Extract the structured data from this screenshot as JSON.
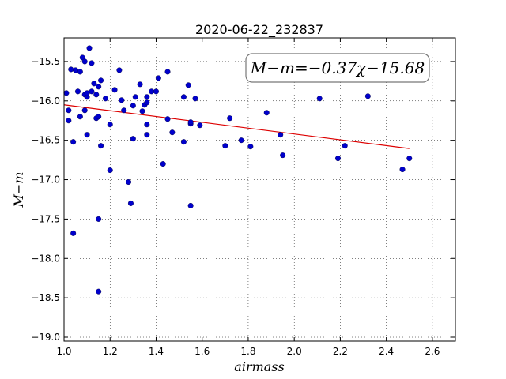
{
  "chart_data": {
    "type": "scatter",
    "title": "2020-06-22_232837",
    "xlabel": "airmass",
    "ylabel": "M−m",
    "xlim": [
      1.0,
      2.7
    ],
    "ylim": [
      -19.05,
      -15.2
    ],
    "grid": true,
    "x_ticks": [
      1.0,
      1.2,
      1.4,
      1.6,
      1.8,
      2.0,
      2.2,
      2.4,
      2.6
    ],
    "x_tick_labels": [
      "1.0",
      "1.2",
      "1.4",
      "1.6",
      "1.8",
      "2.0",
      "2.2",
      "2.4",
      "2.6"
    ],
    "y_ticks": [
      -15.5,
      -16.0,
      -16.5,
      -17.0,
      -17.5,
      -18.0,
      -18.5,
      -19.0
    ],
    "y_tick_labels": [
      "−15.5",
      "−16.0",
      "−16.5",
      "−17.0",
      "−17.5",
      "−18.0",
      "−18.5",
      "−19.0"
    ],
    "annotation": "M−m=−0.37χ−15.68",
    "marker_color": "#0000cc",
    "fit_color": "#dd0000",
    "fit_line": {
      "slope": -0.37,
      "intercept": -15.68,
      "x_range": [
        1.0,
        2.5
      ]
    },
    "points": [
      [
        1.01,
        -15.9
      ],
      [
        1.02,
        -16.12
      ],
      [
        1.02,
        -16.25
      ],
      [
        1.03,
        -15.6
      ],
      [
        1.04,
        -16.52
      ],
      [
        1.04,
        -17.68
      ],
      [
        1.05,
        -15.61
      ],
      [
        1.06,
        -15.88
      ],
      [
        1.07,
        -16.2
      ],
      [
        1.07,
        -15.63
      ],
      [
        1.08,
        -15.45
      ],
      [
        1.09,
        -15.5
      ],
      [
        1.09,
        -16.12
      ],
      [
        1.09,
        -15.92
      ],
      [
        1.1,
        -15.95
      ],
      [
        1.1,
        -16.43
      ],
      [
        1.1,
        -15.9
      ],
      [
        1.11,
        -15.33
      ],
      [
        1.12,
        -15.88
      ],
      [
        1.12,
        -15.52
      ],
      [
        1.13,
        -15.78
      ],
      [
        1.14,
        -16.22
      ],
      [
        1.14,
        -15.92
      ],
      [
        1.15,
        -16.2
      ],
      [
        1.15,
        -15.82
      ],
      [
        1.15,
        -17.5
      ],
      [
        1.15,
        -18.42
      ],
      [
        1.16,
        -16.57
      ],
      [
        1.16,
        -15.74
      ],
      [
        1.18,
        -15.97
      ],
      [
        1.2,
        -16.3
      ],
      [
        1.2,
        -16.88
      ],
      [
        1.22,
        -15.86
      ],
      [
        1.24,
        -15.61
      ],
      [
        1.25,
        -15.99
      ],
      [
        1.26,
        -16.12
      ],
      [
        1.28,
        -17.03
      ],
      [
        1.29,
        -17.3
      ],
      [
        1.3,
        -16.48
      ],
      [
        1.3,
        -16.06
      ],
      [
        1.31,
        -15.95
      ],
      [
        1.33,
        -15.79
      ],
      [
        1.34,
        -16.13
      ],
      [
        1.35,
        -16.05
      ],
      [
        1.36,
        -16.02
      ],
      [
        1.36,
        -16.3
      ],
      [
        1.36,
        -16.43
      ],
      [
        1.36,
        -15.95
      ],
      [
        1.38,
        -15.88
      ],
      [
        1.4,
        -15.88
      ],
      [
        1.41,
        -15.71
      ],
      [
        1.43,
        -16.8
      ],
      [
        1.45,
        -15.63
      ],
      [
        1.45,
        -16.23
      ],
      [
        1.47,
        -16.4
      ],
      [
        1.52,
        -15.95
      ],
      [
        1.52,
        -16.52
      ],
      [
        1.54,
        -15.8
      ],
      [
        1.55,
        -16.29
      ],
      [
        1.55,
        -16.27
      ],
      [
        1.55,
        -17.33
      ],
      [
        1.57,
        -15.97
      ],
      [
        1.59,
        -16.31
      ],
      [
        1.7,
        -16.57
      ],
      [
        1.72,
        -16.22
      ],
      [
        1.77,
        -16.5
      ],
      [
        1.81,
        -16.58
      ],
      [
        1.88,
        -16.15
      ],
      [
        1.94,
        -16.43
      ],
      [
        1.95,
        -16.69
      ],
      [
        2.11,
        -15.97
      ],
      [
        2.19,
        -16.73
      ],
      [
        2.22,
        -16.57
      ],
      [
        2.32,
        -15.94
      ],
      [
        2.47,
        -16.87
      ],
      [
        2.5,
        -16.73
      ]
    ]
  }
}
